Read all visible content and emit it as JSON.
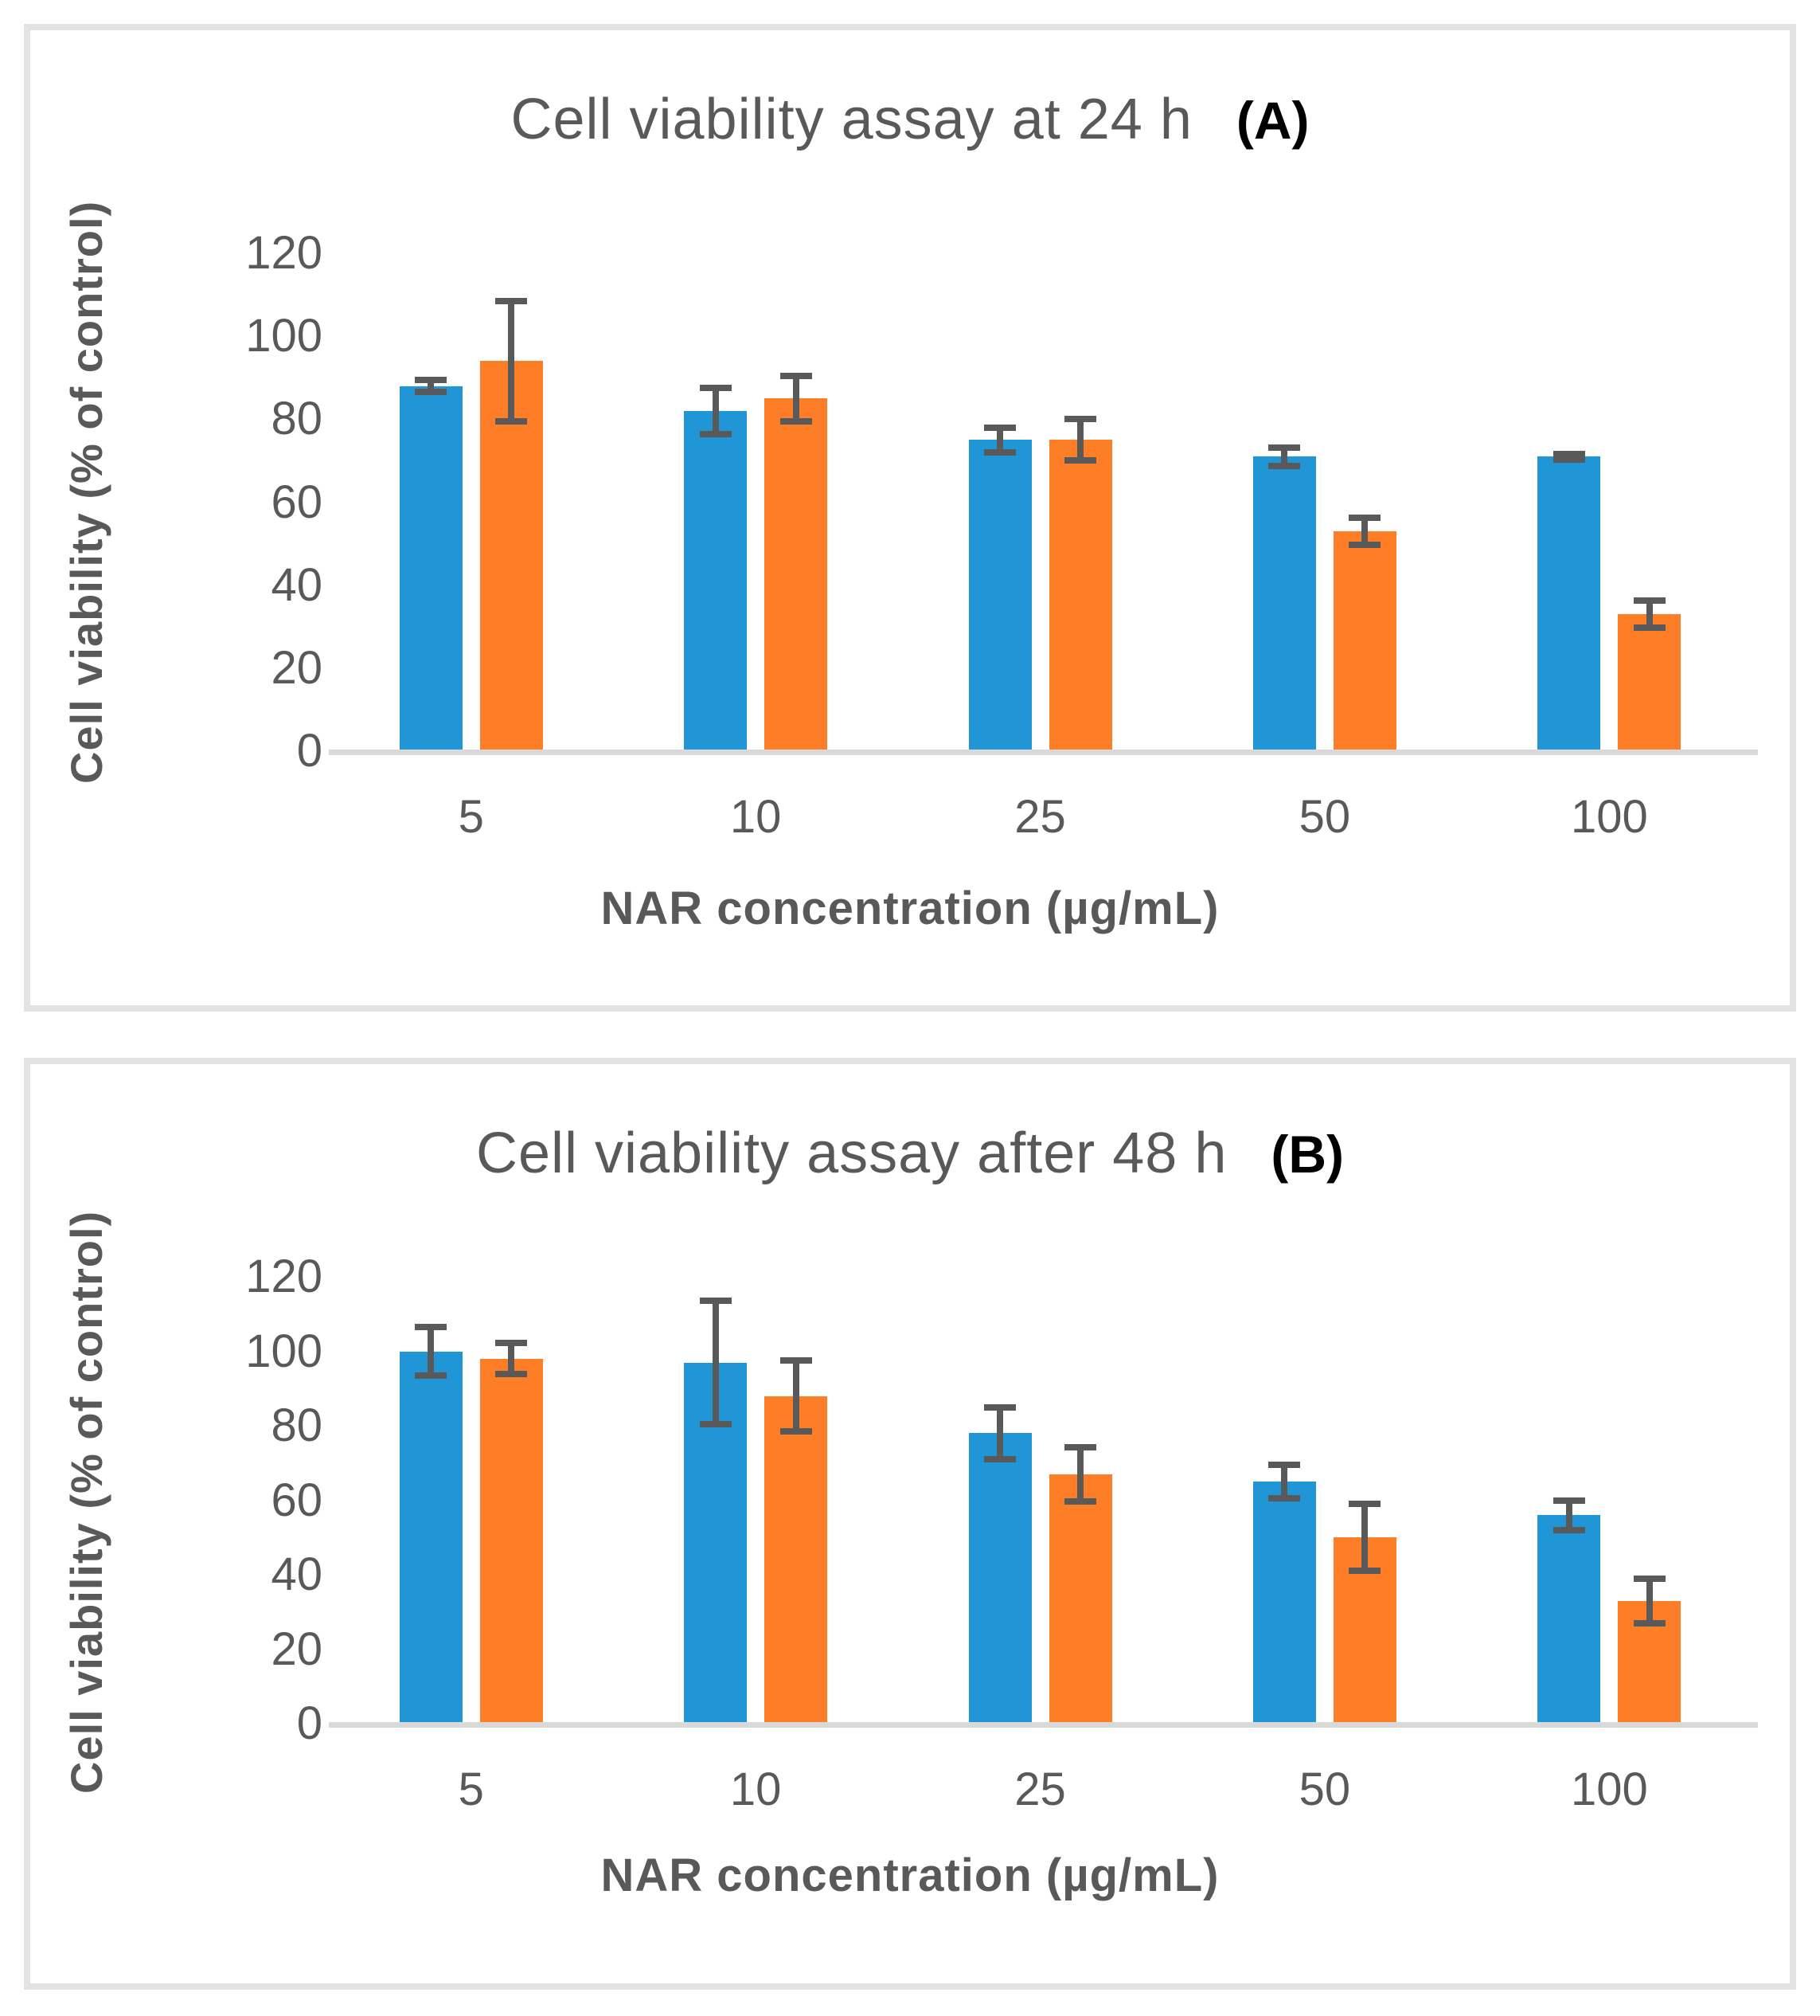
{
  "styles": {
    "background": "#ffffff",
    "panel_border_color": "#e3e3e3",
    "axis_line_color": "#d9d9d9",
    "error_bar_color": "#595959",
    "text_color": "#595959",
    "panel_letter_color": "#000000",
    "blue": "#2096d6",
    "orange": "#fd7e27"
  },
  "chart_data": [
    {
      "type": "bar",
      "panel_label": "(A)",
      "title": "Cell viability assay at 24 h",
      "xlabel": "NAR concentration (µg/mL)",
      "ylabel": "Cell viability  (% of control)",
      "categories": [
        "5",
        "10",
        "25",
        "50",
        "100"
      ],
      "ylim": [
        0,
        120
      ],
      "yticks": [
        120,
        100,
        80,
        60,
        40,
        20,
        0
      ],
      "grid": false,
      "legend_position": "none",
      "series": [
        {
          "name": "blue-series",
          "color": "#2096d6",
          "values": [
            88,
            82,
            75,
            71,
            71
          ],
          "errors": [
            1.5,
            5.5,
            3,
            2.2,
            0.7
          ]
        },
        {
          "name": "orange-series",
          "color": "#fd7e27",
          "values": [
            94,
            85,
            75,
            53,
            33
          ],
          "errors": [
            14.5,
            5.5,
            5,
            3.3,
            3.3
          ]
        }
      ]
    },
    {
      "type": "bar",
      "panel_label": "(B)",
      "title": "Cell viability assay after 48 h",
      "xlabel": "NAR concentration  (µg/mL)",
      "ylabel": "Cell viability  (% of control)",
      "categories": [
        "5",
        "10",
        "25",
        "50",
        "100"
      ],
      "ylim": [
        0,
        120
      ],
      "yticks": [
        120,
        100,
        80,
        60,
        40,
        20,
        0
      ],
      "grid": false,
      "legend_position": "none",
      "series": [
        {
          "name": "blue-series",
          "color": "#2096d6",
          "values": [
            100,
            97,
            78,
            65,
            56
          ],
          "errors": [
            6.5,
            16.5,
            7,
            4.5,
            4
          ]
        },
        {
          "name": "orange-series",
          "color": "#fd7e27",
          "values": [
            98,
            88,
            67,
            50,
            33
          ],
          "errors": [
            4.2,
            9.5,
            7.3,
            9,
            6
          ]
        }
      ]
    }
  ]
}
